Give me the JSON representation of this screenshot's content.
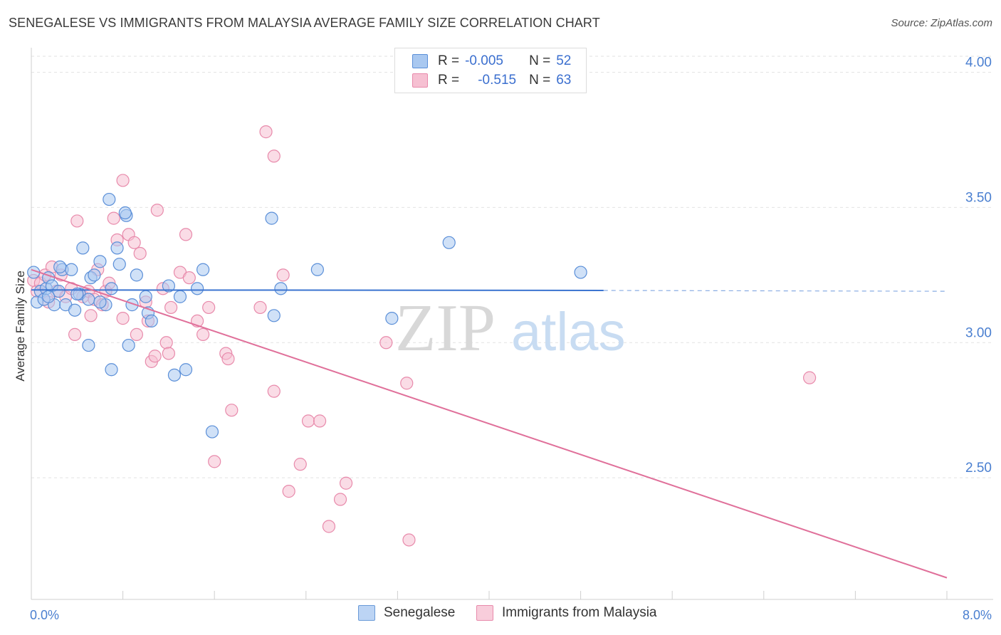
{
  "header": {
    "title": "SENEGALESE VS IMMIGRANTS FROM MALAYSIA AVERAGE FAMILY SIZE CORRELATION CHART",
    "source": "Source: ZipAtlas.com"
  },
  "legend_box": {
    "rows": [
      {
        "r_label": "R =",
        "r_value": "-0.005",
        "n_label": "N =",
        "n_value": "52"
      },
      {
        "r_label": "R =",
        "r_value": "-0.515",
        "n_label": "N =",
        "n_value": "63"
      }
    ]
  },
  "colors": {
    "series1_fill": "#a9c8f0",
    "series1_stroke": "#5b8fd8",
    "series1_line": "#3b74d0",
    "series2_fill": "#f6c0d2",
    "series2_stroke": "#e88aab",
    "series2_line": "#e0709a",
    "tick": "#4a7fd0",
    "grid": "#e2e2e2"
  },
  "watermark": {
    "part1": "ZIP",
    "part2": "atlas"
  },
  "chart_data": {
    "type": "scatter",
    "title": "SENEGALESE VS IMMIGRANTS FROM MALAYSIA AVERAGE FAMILY SIZE CORRELATION CHART",
    "xlabel": "",
    "ylabel": "Average Family Size",
    "xlim": [
      0,
      8
    ],
    "ylim": [
      2.05,
      4.07
    ],
    "x_tick_labels": [
      "0.0%",
      "8.0%"
    ],
    "y_ticks": [
      2.5,
      3.0,
      3.5,
      4.0
    ],
    "y_tick_labels": [
      "2.50",
      "3.00",
      "3.50",
      "4.00"
    ],
    "grid": true,
    "legend_position": "bottom",
    "series": [
      {
        "name": "Senegalese",
        "r": -0.005,
        "n": 52,
        "trend": {
          "x0": 0.0,
          "y0": 3.195,
          "x1": 5.0,
          "y1": 3.193,
          "dash_to_x": 8.0,
          "dash_y": 3.19
        },
        "points": [
          [
            0.02,
            3.26
          ],
          [
            0.05,
            3.15
          ],
          [
            0.08,
            3.19
          ],
          [
            0.11,
            3.16
          ],
          [
            0.13,
            3.2
          ],
          [
            0.15,
            3.24
          ],
          [
            0.18,
            3.21
          ],
          [
            0.2,
            3.14
          ],
          [
            0.24,
            3.19
          ],
          [
            0.27,
            3.27
          ],
          [
            0.3,
            3.14
          ],
          [
            0.35,
            3.27
          ],
          [
            0.38,
            3.12
          ],
          [
            0.42,
            3.18
          ],
          [
            0.45,
            3.35
          ],
          [
            0.5,
            3.16
          ],
          [
            0.52,
            3.24
          ],
          [
            0.5,
            2.99
          ],
          [
            0.55,
            3.25
          ],
          [
            0.6,
            3.3
          ],
          [
            0.65,
            3.14
          ],
          [
            0.68,
            3.53
          ],
          [
            0.7,
            3.2
          ],
          [
            0.7,
            2.9
          ],
          [
            0.75,
            3.35
          ],
          [
            0.77,
            3.29
          ],
          [
            0.83,
            3.47
          ],
          [
            0.82,
            3.48
          ],
          [
            0.85,
            2.99
          ],
          [
            0.88,
            3.14
          ],
          [
            0.92,
            3.25
          ],
          [
            1.0,
            3.17
          ],
          [
            1.02,
            3.11
          ],
          [
            1.05,
            3.08
          ],
          [
            1.2,
            3.21
          ],
          [
            1.25,
            2.88
          ],
          [
            1.3,
            3.17
          ],
          [
            1.35,
            2.9
          ],
          [
            1.45,
            3.2
          ],
          [
            1.5,
            3.27
          ],
          [
            1.58,
            2.67
          ],
          [
            2.1,
            3.46
          ],
          [
            2.12,
            3.1
          ],
          [
            2.18,
            3.2
          ],
          [
            2.5,
            3.27
          ],
          [
            3.15,
            3.09
          ],
          [
            3.65,
            3.37
          ],
          [
            4.8,
            3.26
          ],
          [
            0.25,
            3.28
          ],
          [
            0.4,
            3.18
          ],
          [
            0.6,
            3.15
          ],
          [
            0.15,
            3.17
          ]
        ]
      },
      {
        "name": "Immigrants from Malaysia",
        "r": -0.515,
        "n": 63,
        "trend": {
          "x0": 0.0,
          "y0": 3.27,
          "x1": 8.0,
          "y1": 2.13
        },
        "points": [
          [
            0.02,
            3.23
          ],
          [
            0.05,
            3.19
          ],
          [
            0.08,
            3.22
          ],
          [
            0.12,
            3.25
          ],
          [
            0.15,
            3.15
          ],
          [
            0.18,
            3.28
          ],
          [
            0.22,
            3.19
          ],
          [
            0.26,
            3.25
          ],
          [
            0.3,
            3.17
          ],
          [
            0.35,
            3.2
          ],
          [
            0.38,
            3.03
          ],
          [
            0.4,
            3.45
          ],
          [
            0.45,
            3.17
          ],
          [
            0.5,
            3.19
          ],
          [
            0.52,
            3.1
          ],
          [
            0.55,
            3.16
          ],
          [
            0.58,
            3.27
          ],
          [
            0.62,
            3.14
          ],
          [
            0.65,
            3.19
          ],
          [
            0.68,
            3.22
          ],
          [
            0.72,
            3.46
          ],
          [
            0.75,
            3.38
          ],
          [
            0.8,
            3.09
          ],
          [
            0.8,
            3.6
          ],
          [
            0.85,
            3.4
          ],
          [
            0.9,
            3.37
          ],
          [
            0.92,
            3.03
          ],
          [
            0.95,
            3.33
          ],
          [
            1.0,
            3.15
          ],
          [
            1.02,
            3.08
          ],
          [
            1.05,
            2.93
          ],
          [
            1.08,
            2.95
          ],
          [
            1.1,
            3.49
          ],
          [
            1.15,
            3.2
          ],
          [
            1.18,
            3.0
          ],
          [
            1.2,
            2.96
          ],
          [
            1.22,
            3.13
          ],
          [
            1.3,
            3.26
          ],
          [
            1.35,
            3.4
          ],
          [
            1.38,
            3.24
          ],
          [
            1.45,
            3.08
          ],
          [
            1.5,
            3.03
          ],
          [
            1.55,
            3.13
          ],
          [
            1.6,
            2.56
          ],
          [
            1.7,
            2.96
          ],
          [
            1.72,
            2.94
          ],
          [
            1.75,
            2.75
          ],
          [
            2.0,
            3.13
          ],
          [
            2.05,
            3.78
          ],
          [
            2.12,
            3.69
          ],
          [
            2.12,
            2.82
          ],
          [
            2.2,
            3.25
          ],
          [
            2.25,
            2.45
          ],
          [
            2.35,
            2.55
          ],
          [
            2.42,
            2.71
          ],
          [
            2.52,
            2.71
          ],
          [
            2.6,
            2.32
          ],
          [
            2.7,
            2.42
          ],
          [
            2.75,
            2.48
          ],
          [
            3.1,
            3.0
          ],
          [
            3.28,
            2.85
          ],
          [
            3.3,
            2.27
          ],
          [
            6.8,
            2.87
          ]
        ]
      }
    ]
  },
  "bottom_legend": {
    "items": [
      "Senegalese",
      "Immigrants from Malaysia"
    ]
  }
}
